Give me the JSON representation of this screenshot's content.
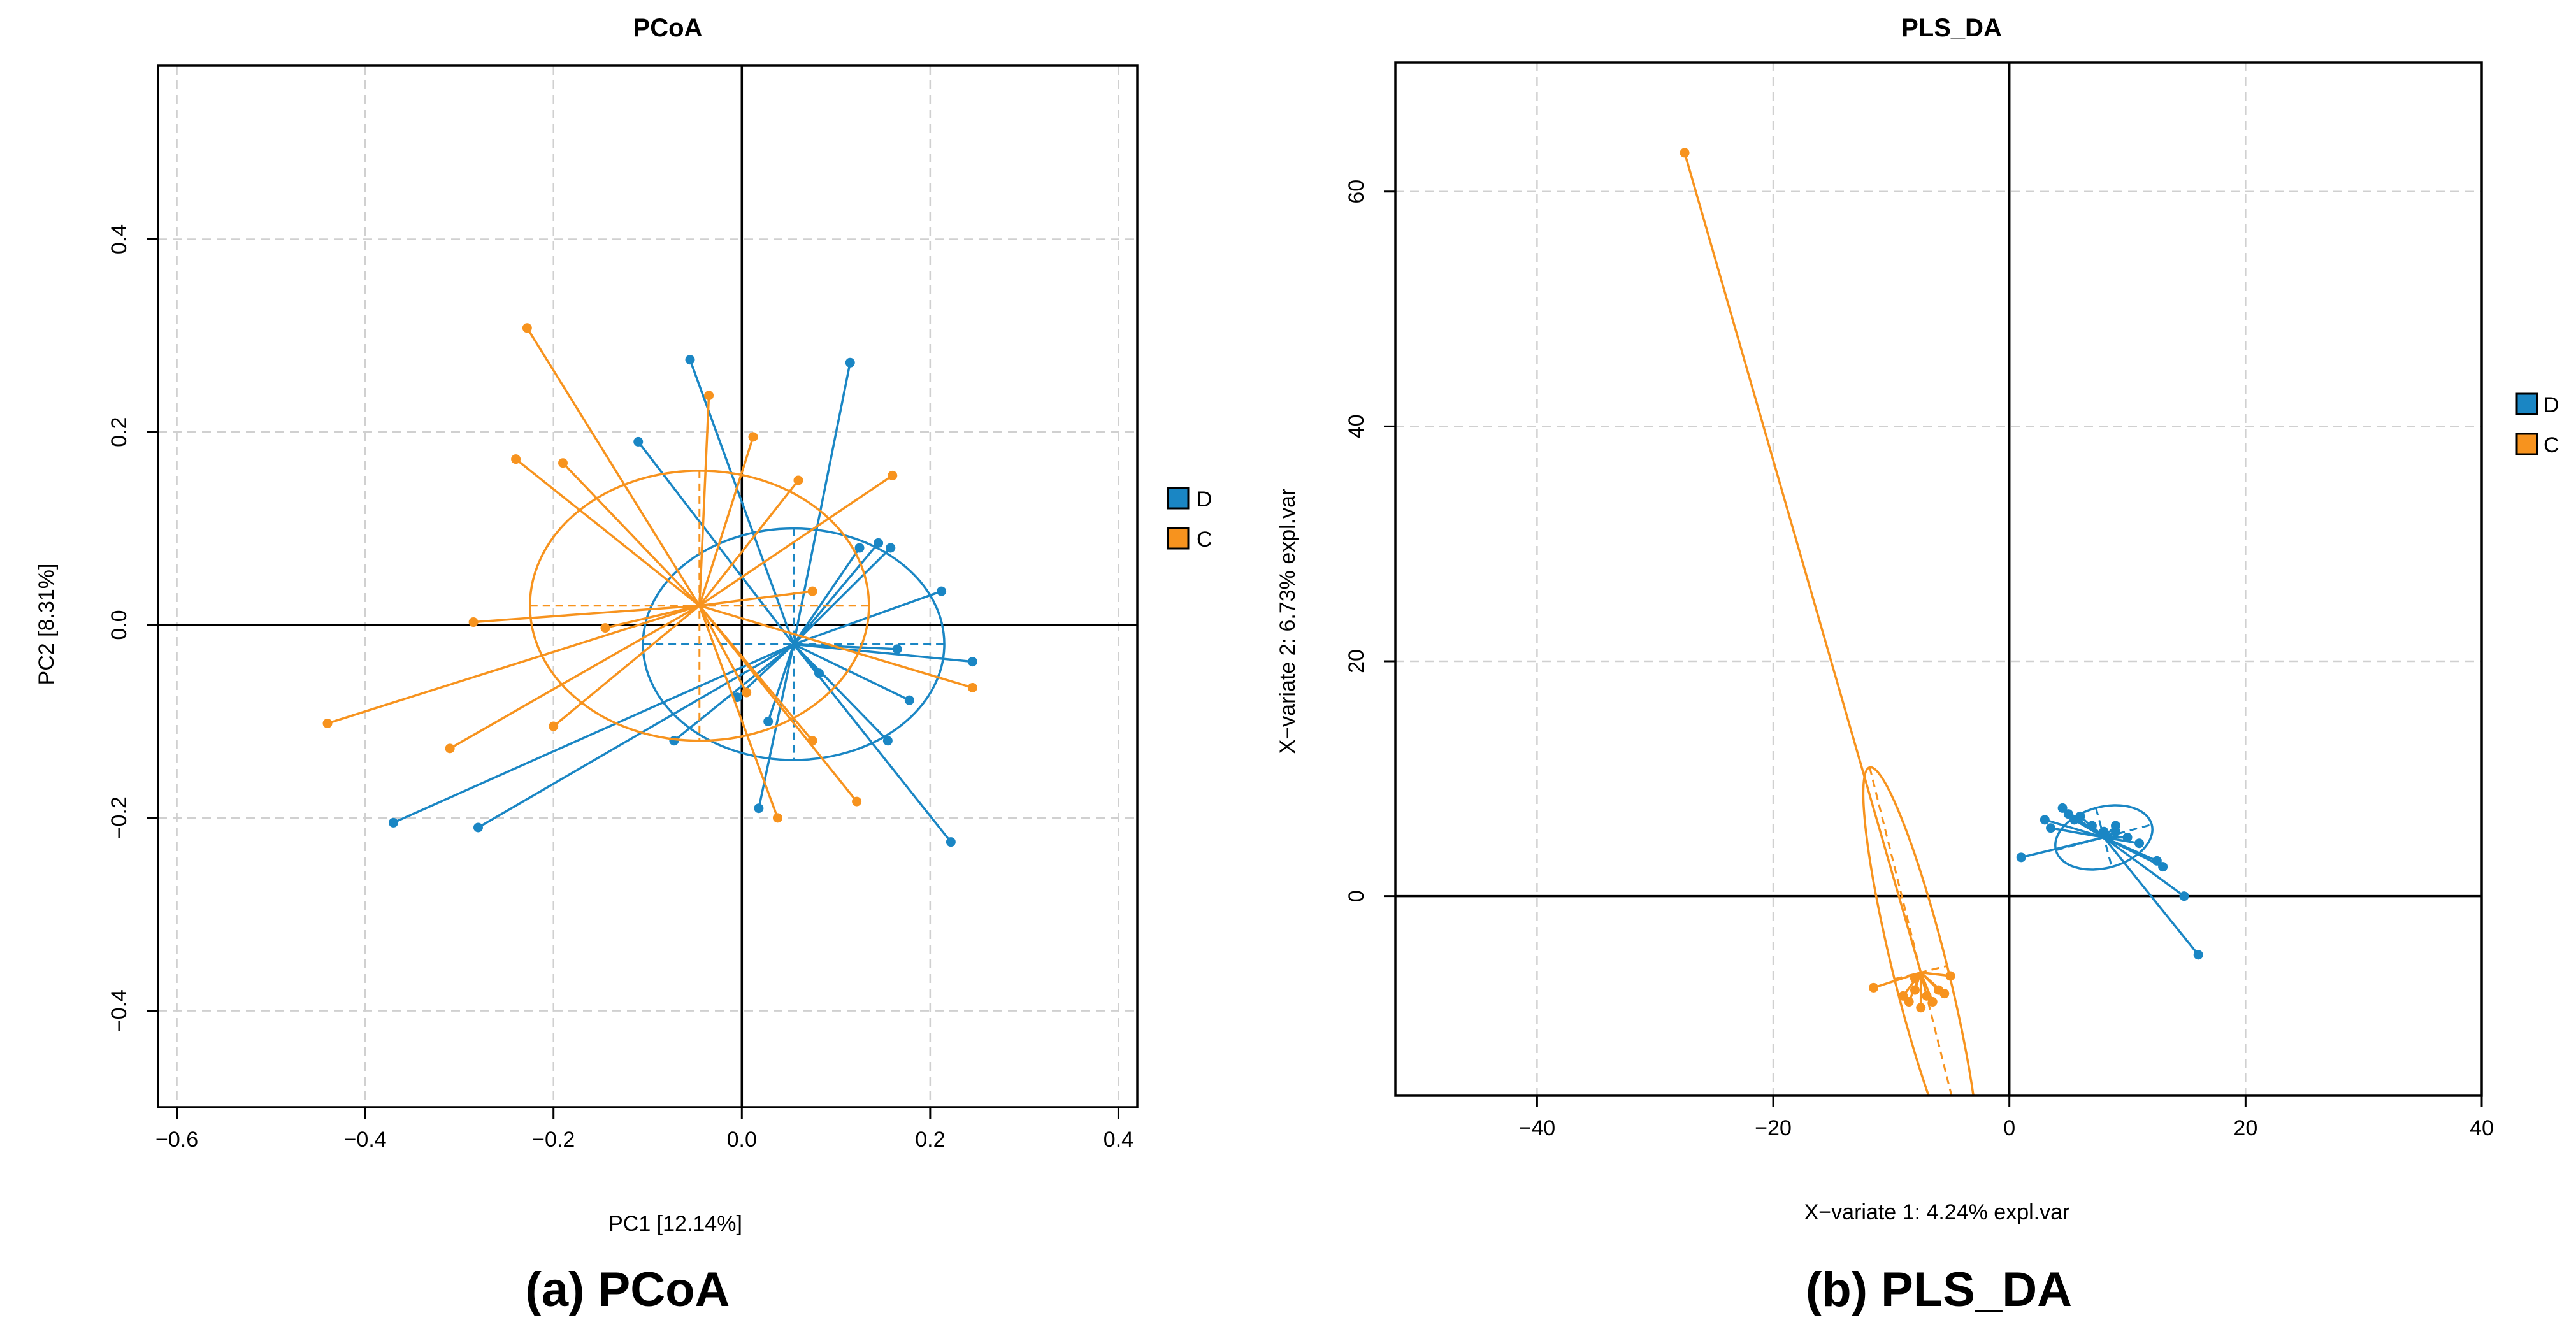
{
  "captions": [
    "(a) PCoA",
    "(b) PLS_DA"
  ],
  "colors": {
    "D": "#1a86c4",
    "C": "#f7931e"
  },
  "chart_data": [
    {
      "type": "scatter",
      "title": "PCoA",
      "xlabel": "PC1  [12.14%]",
      "ylabel": "PC2  [8.31%]",
      "xlim": [
        -0.62,
        0.42
      ],
      "ylim": [
        -0.5,
        0.58
      ],
      "xticks": [
        -0.6,
        -0.4,
        -0.2,
        0.0,
        0.2,
        0.4
      ],
      "yticks": [
        -0.4,
        -0.2,
        0.0,
        0.2,
        0.4
      ],
      "xtick_labels": [
        "−0.6",
        "−0.4",
        "−0.2",
        "0.0",
        "0.2",
        "0.4"
      ],
      "ytick_labels": [
        "−0.4",
        "−0.2",
        "0.0",
        "0.2",
        "0.4"
      ],
      "legend": [
        "D",
        "C"
      ],
      "grid": true,
      "series": [
        {
          "name": "D",
          "centroid": [
            0.055,
            -0.02
          ],
          "ellipse": {
            "rx": 0.16,
            "ry": 0.12,
            "angle": 0
          },
          "points": [
            [
              -0.055,
              0.275
            ],
            [
              0.115,
              0.272
            ],
            [
              -0.11,
              0.19
            ],
            [
              0.125,
              0.08
            ],
            [
              0.145,
              0.085
            ],
            [
              0.158,
              0.08
            ],
            [
              0.212,
              0.035
            ],
            [
              0.245,
              -0.038
            ],
            [
              0.178,
              -0.078
            ],
            [
              0.165,
              -0.025
            ],
            [
              0.155,
              -0.12
            ],
            [
              0.222,
              -0.225
            ],
            [
              0.018,
              -0.19
            ],
            [
              0.028,
              -0.1
            ],
            [
              -0.072,
              -0.12
            ],
            [
              -0.28,
              -0.21
            ],
            [
              -0.37,
              -0.205
            ],
            [
              0.082,
              -0.05
            ],
            [
              -0.005,
              -0.075
            ]
          ]
        },
        {
          "name": "C",
          "centroid": [
            -0.045,
            0.02
          ],
          "ellipse": {
            "rx": 0.18,
            "ry": 0.14,
            "angle": 0
          },
          "points": [
            [
              -0.228,
              0.308
            ],
            [
              -0.035,
              0.238
            ],
            [
              0.012,
              0.195
            ],
            [
              -0.24,
              0.172
            ],
            [
              -0.19,
              0.168
            ],
            [
              0.06,
              0.15
            ],
            [
              0.16,
              0.155
            ],
            [
              -0.285,
              0.003
            ],
            [
              -0.145,
              -0.003
            ],
            [
              -0.44,
              -0.102
            ],
            [
              -0.31,
              -0.128
            ],
            [
              -0.2,
              -0.105
            ],
            [
              0.245,
              -0.065
            ],
            [
              0.122,
              -0.183
            ],
            [
              0.038,
              -0.2
            ],
            [
              0.075,
              -0.12
            ],
            [
              0.075,
              0.035
            ],
            [
              0.005,
              -0.07
            ]
          ]
        }
      ]
    },
    {
      "type": "scatter",
      "title": "PLS_DA",
      "xlabel": "X−variate 1: 4.24% expl.var",
      "ylabel": "X−variate 2: 6.73% expl.var",
      "xlim": [
        -52,
        40
      ],
      "ylim": [
        -17,
        71
      ],
      "xticks": [
        -40,
        -20,
        0,
        20,
        40
      ],
      "yticks": [
        0,
        20,
        40,
        60
      ],
      "xtick_labels": [
        "−40",
        "−20",
        "0",
        "20",
        "40"
      ],
      "ytick_labels": [
        "0",
        "20",
        "40",
        "60"
      ],
      "legend": [
        "D",
        "C"
      ],
      "grid": true,
      "series": [
        {
          "name": "D",
          "centroid": [
            8,
            5
          ],
          "ellipse": {
            "rx": 4.2,
            "ry": 2.6,
            "angle": -15
          },
          "points": [
            [
              1,
              3.3
            ],
            [
              3,
              6.5
            ],
            [
              3.5,
              5.8
            ],
            [
              4.5,
              7.5
            ],
            [
              5,
              7
            ],
            [
              6,
              6.8
            ],
            [
              7,
              6
            ],
            [
              8,
              5.5
            ],
            [
              9,
              5.5
            ],
            [
              10,
              5
            ],
            [
              11,
              4.5
            ],
            [
              12.5,
              3
            ],
            [
              13,
              2.5
            ],
            [
              14.8,
              0
            ],
            [
              16,
              -5
            ],
            [
              5.5,
              6.5
            ],
            [
              9,
              6
            ]
          ]
        },
        {
          "name": "C",
          "centroid": [
            -7.5,
            -6.5
          ],
          "ellipse": {
            "rx": 2.3,
            "ry": 18,
            "angle": -14
          },
          "points": [
            [
              -27.5,
              63.3
            ],
            [
              -11.5,
              -7.8
            ],
            [
              -9,
              -8.5
            ],
            [
              -8.5,
              -9
            ],
            [
              -8,
              -8
            ],
            [
              -7.5,
              -9.5
            ],
            [
              -7,
              -8.5
            ],
            [
              -6.5,
              -9
            ],
            [
              -6,
              -8
            ],
            [
              -5.5,
              -8.3
            ],
            [
              -5,
              -6.8
            ],
            [
              -8,
              -7
            ]
          ]
        }
      ]
    }
  ]
}
